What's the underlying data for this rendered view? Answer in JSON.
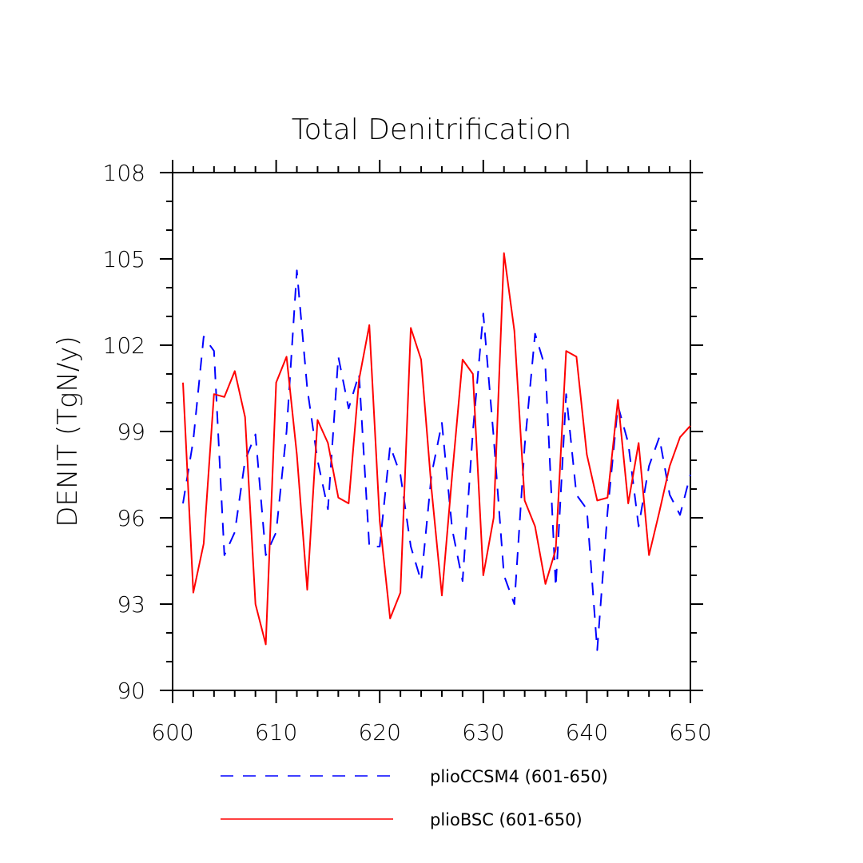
{
  "chart_data": {
    "type": "line",
    "title": "Total Denitrification",
    "xlabel": "",
    "ylabel": "DENIT  (TgN/y)",
    "xlim": [
      600,
      650
    ],
    "ylim": [
      90,
      108
    ],
    "x_ticks": [
      600,
      610,
      620,
      630,
      640,
      650
    ],
    "y_ticks": [
      90,
      93,
      96,
      99,
      102,
      105,
      108
    ],
    "grid": false,
    "legend_position": "bottom",
    "x": [
      601,
      602,
      603,
      604,
      605,
      606,
      607,
      608,
      609,
      610,
      611,
      612,
      613,
      614,
      615,
      616,
      617,
      618,
      619,
      620,
      621,
      622,
      623,
      624,
      625,
      626,
      627,
      628,
      629,
      630,
      631,
      632,
      633,
      634,
      635,
      636,
      637,
      638,
      639,
      640,
      641,
      642,
      643,
      644,
      645,
      646,
      647,
      648,
      649,
      650
    ],
    "series": [
      {
        "name": "plioCCSM4 (601-650)",
        "color": "#0000ff",
        "style": "dashed",
        "values": [
          96.5,
          98.7,
          102.3,
          101.8,
          94.7,
          95.5,
          98.0,
          98.9,
          94.7,
          95.5,
          99.0,
          104.6,
          100.5,
          98.0,
          96.3,
          101.6,
          99.8,
          101.0,
          95.0,
          95.0,
          98.5,
          97.5,
          95.0,
          93.8,
          97.5,
          99.3,
          95.6,
          93.8,
          99.0,
          103.1,
          98.8,
          94.0,
          93.0,
          98.5,
          102.4,
          101.2,
          93.6,
          100.3,
          96.8,
          96.3,
          91.4,
          96.2,
          99.9,
          98.6,
          95.7,
          97.8,
          98.8,
          96.8,
          96.1,
          97.5
        ]
      },
      {
        "name": "plioBSC (601-650)",
        "color": "#ff0000",
        "style": "solid",
        "values": [
          100.7,
          93.4,
          95.1,
          100.3,
          100.2,
          101.1,
          99.5,
          93.0,
          91.6,
          100.7,
          101.6,
          98.2,
          93.5,
          99.4,
          98.6,
          96.7,
          96.5,
          100.8,
          102.7,
          95.9,
          92.5,
          93.4,
          102.6,
          101.5,
          97.0,
          93.3,
          97.5,
          101.5,
          101.0,
          94.0,
          96.0,
          105.2,
          102.5,
          96.6,
          95.7,
          93.7,
          94.9,
          101.8,
          101.6,
          98.2,
          96.6,
          96.7,
          100.1,
          96.5,
          98.6,
          94.7,
          96.2,
          97.8,
          98.8,
          99.2
        ]
      }
    ]
  }
}
